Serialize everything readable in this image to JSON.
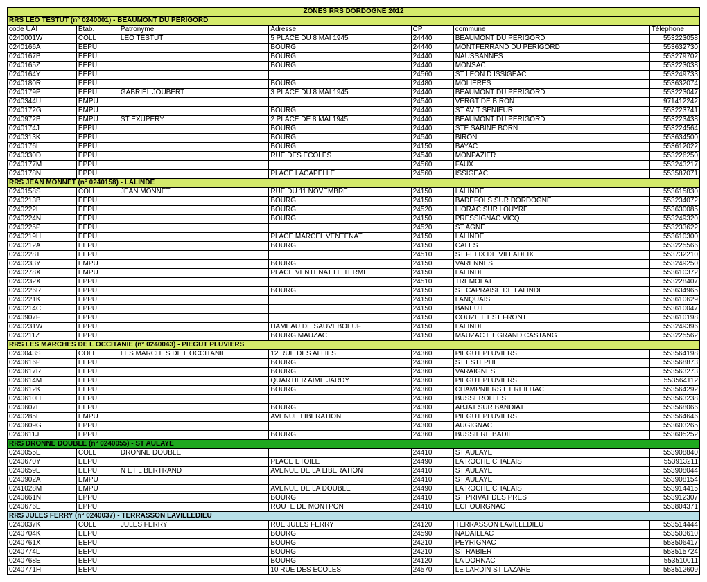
{
  "title": "ZONES RRS DORDOGNE 2012",
  "headers": [
    "code UAI",
    "Étab.",
    "Patronyme",
    "Adresse",
    "CP",
    "commune",
    "Téléphone"
  ],
  "sections": [
    {
      "label": "RRS LEO TESTUT (n° 0240001) - BEAUMONT DU PERIGORD",
      "style": "section",
      "rows": [
        [
          "0240001W",
          "COLL",
          "LEO TESTUT",
          "5 PLACE DU 8 MAI 1945",
          "24440",
          "BEAUMONT DU PERIGORD",
          "553223058"
        ],
        [
          "0240166A",
          "EEPU",
          "",
          "BOURG",
          "24440",
          "MONTFERRAND DU PERIGORD",
          "553632730"
        ],
        [
          "0240167B",
          "EEPU",
          "",
          "BOURG",
          "24440",
          "NAUSSANNES",
          "553279702"
        ],
        [
          "0240165Z",
          "EEPU",
          "",
          "BOURG",
          "24440",
          "MONSAC",
          "553223038"
        ],
        [
          "0240164Y",
          "EEPU",
          "",
          "",
          "24560",
          "ST LEON D ISSIGEAC",
          "553249733"
        ],
        [
          "0240180R",
          "EEPU",
          "",
          "BOURG",
          "24480",
          "MOLIERES",
          "553632074"
        ],
        [
          "0240179P",
          "EEPU",
          "GABRIEL JOUBERT",
          "3 PLACE DU 8 MAI 1945",
          "24440",
          "BEAUMONT DU PERIGORD",
          "553223047"
        ],
        [
          "0240344U",
          "EMPU",
          "",
          "",
          "24540",
          "VERGT DE BIRON",
          "971412242"
        ],
        [
          "0240172G",
          "EMPU",
          "",
          "BOURG",
          "24440",
          "ST AVIT SENIEUR",
          "553223741"
        ],
        [
          "0240972B",
          "EMPU",
          "ST EXUPERY",
          "2 PLACE DE 8 MAI 1945",
          "24440",
          "BEAUMONT DU PERIGORD",
          "553223438"
        ],
        [
          "0240174J",
          "EPPU",
          "",
          "BOURG",
          "24440",
          "STE SABINE BORN",
          "553224564"
        ],
        [
          "0240313K",
          "EPPU",
          "",
          "BOURG",
          "24540",
          "BIRON",
          "553634500"
        ],
        [
          "0240176L",
          "EPPU",
          "",
          "BOURG",
          "24150",
          "BAYAC",
          "553612022"
        ],
        [
          "0240330D",
          "EPPU",
          "",
          "RUE DES ÉCOLES",
          "24540",
          "MONPAZIER",
          "553226250"
        ],
        [
          "0240177M",
          "EPPU",
          "",
          "",
          "24560",
          "FAUX",
          "553243217"
        ],
        [
          "0240178N",
          "EPPU",
          "",
          "PLACE LACAPELLE",
          "24560",
          "ISSIGEAC",
          "553587071"
        ]
      ]
    },
    {
      "label": "RRS JEAN MONNET (n° 0240158) - LALINDE",
      "style": "section",
      "rows": [
        [
          "0240158S",
          "COLL",
          "JEAN MONNET",
          "RUE DU 11 NOVEMBRE",
          "24150",
          "LALINDE",
          "553615830"
        ],
        [
          "0240213B",
          "EEPU",
          "",
          "BOURG",
          "24150",
          "BADEFOLS SUR DORDOGNE",
          "553234072"
        ],
        [
          "0240222L",
          "EEPU",
          "",
          "BOURG",
          "24520",
          "LIORAC SUR LOUYRE",
          "553630085"
        ],
        [
          "0240224N",
          "EEPU",
          "",
          "BOURG",
          "24150",
          "PRESSIGNAC VICQ",
          "553249320"
        ],
        [
          "0240225P",
          "EEPU",
          "",
          "",
          "24520",
          "ST AGNE",
          "553233622"
        ],
        [
          "0240219H",
          "EEPU",
          "",
          "PLACE MARCEL VENTENAT",
          "24150",
          "LALINDE",
          "553610300"
        ],
        [
          "0240212A",
          "EEPU",
          "",
          "BOURG",
          "24150",
          "CALES",
          "553225566"
        ],
        [
          "0240228T",
          "EEPU",
          "",
          "",
          "24510",
          "ST FELIX DE VILLADEIX",
          "553732210"
        ],
        [
          "0240233Y",
          "EMPU",
          "",
          "BOURG",
          "24150",
          "VARENNES",
          "553249250"
        ],
        [
          "0240278X",
          "EMPU",
          "",
          "PLACE VENTENAT LE TERME",
          "24150",
          "LALINDE",
          "553610372"
        ],
        [
          "0240232X",
          "EPPU",
          "",
          "",
          "24510",
          "TREMOLAT",
          "553228407"
        ],
        [
          "0240226R",
          "EPPU",
          "",
          "BOURG",
          "24150",
          "ST CAPRAISE DE LALINDE",
          "553634965"
        ],
        [
          "0240221K",
          "EPPU",
          "",
          "",
          "24150",
          "LANQUAIS",
          "553610629"
        ],
        [
          "0240214C",
          "EPPU",
          "",
          "",
          "24150",
          "BANEUIL",
          "553610047"
        ],
        [
          "0240907F",
          "EPPU",
          "",
          "",
          "24150",
          "COUZE ET ST FRONT",
          "553610198"
        ],
        [
          "0240231W",
          "EPPU",
          "",
          "HAMEAU DE SAUVEBOEUF",
          "24150",
          "LALINDE",
          "553249396"
        ],
        [
          "0240211Z",
          "EPPU",
          "",
          "BOURG MAUZAC",
          "24150",
          "MAUZAC ET GRAND CASTANG",
          "553225562"
        ]
      ]
    },
    {
      "label": "RRS LES MARCHES DE L OCCITANIE (n° 0240043) - PIEGUT PLUVIERS",
      "style": "section",
      "rows": [
        [
          "0240043S",
          "COLL",
          "LES MARCHES DE L OCCITANIE",
          "12 RUE DES ALLIES",
          "24360",
          "PIEGUT PLUVIERS",
          "553564198"
        ],
        [
          "0240616P",
          "EEPU",
          "",
          "BOURG",
          "24360",
          "ST ESTEPHE",
          "553568873"
        ],
        [
          "0240617R",
          "EEPU",
          "",
          "BOURG",
          "24360",
          "VARAIGNES",
          "553563273"
        ],
        [
          "0240614M",
          "EEPU",
          "",
          "QUARTIER AIME JARDY",
          "24360",
          "PIEGUT PLUVIERS",
          "553564112"
        ],
        [
          "0240612K",
          "EEPU",
          "",
          "BOURG",
          "24360",
          "CHAMPNIERS ET REILHAC",
          "553564292"
        ],
        [
          "0240610H",
          "EEPU",
          "",
          "",
          "24360",
          "BUSSEROLLES",
          "553563238"
        ],
        [
          "0240607E",
          "EEPU",
          "",
          "BOURG",
          "24300",
          "ABJAT SUR BANDIAT",
          "553568066"
        ],
        [
          "0240285E",
          "EMPU",
          "",
          "AVENUE LIBERATION",
          "24360",
          "PIEGUT PLUVIERS",
          "553564646"
        ],
        [
          "0240609G",
          "EPPU",
          "",
          "",
          "24300",
          "AUGIGNAC",
          "553603265"
        ],
        [
          "0240611J",
          "EPPU",
          "",
          "BOURG",
          "24360",
          "BUSSIERE BADIL",
          "553605252"
        ]
      ]
    },
    {
      "label": "RRS DRONNE DOUBLE (n° 0240055) - ST AULAYE",
      "style": "section-dkgreen",
      "rows": [
        [
          "0240055E",
          "COLL",
          "DRONNE DOUBLE",
          "",
          "24410",
          "ST AULAYE",
          "553908840"
        ],
        [
          "0240670Y",
          "EEPU",
          "",
          "PLACE ETOILE",
          "24490",
          "LA ROCHE CHALAIS",
          "553913211"
        ],
        [
          "0240659L",
          "EEPU",
          "N ET L BERTRAND",
          "AVENUE DE LA LIBERATION",
          "24410",
          "ST AULAYE",
          "553908044"
        ],
        [
          "0240902A",
          "EMPU",
          "",
          "",
          "24410",
          "ST AULAYE",
          "553908154"
        ],
        [
          "0241028M",
          "EMPU",
          "",
          "AVENUE DE LA DOUBLE",
          "24490",
          "LA ROCHE CHALAIS",
          "553914415"
        ],
        [
          "0240661N",
          "EPPU",
          "",
          "BOURG",
          "24410",
          "ST PRIVAT DES PRES",
          "553912307"
        ],
        [
          "0240676E",
          "EPPU",
          "",
          "ROUTE DE MONTPON",
          "24410",
          "ECHOURGNAC",
          "553804371"
        ]
      ]
    },
    {
      "label": "RRS JULES FERRY (n° 0240037) - TERRASSON LAVILLEDIEU",
      "style": "section-blue",
      "rows": [
        [
          "0240037K",
          "COLL",
          "JULES FERRY",
          "RUE JULES FERRY",
          "24120",
          "TERRASSON LAVILLEDIEU",
          "553514444"
        ],
        [
          "0240704K",
          "EEPU",
          "",
          "BOURG",
          "24590",
          "NADAILLAC",
          "553503610"
        ],
        [
          "0240761X",
          "EEPU",
          "",
          "BOURG",
          "24210",
          "PEYRIGNAC",
          "553506417"
        ],
        [
          "0240774L",
          "EEPU",
          "",
          "BOURG",
          "24210",
          "ST RABIER",
          "553515724"
        ],
        [
          "0240768E",
          "EEPU",
          "",
          "BOURG",
          "24120",
          "LA DORNAC",
          "553510011"
        ],
        [
          "0240771H",
          "EEPU",
          "",
          "10 RUE DES ECOLES",
          "24570",
          "LE LARDIN ST LAZARE",
          "553512609"
        ]
      ]
    }
  ]
}
